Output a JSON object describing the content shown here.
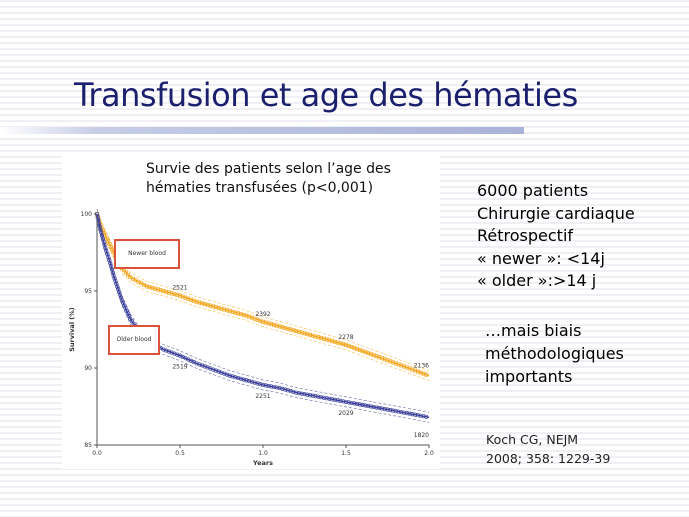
{
  "slide": {
    "title": "Transfusion et age des hématies",
    "info_lines": [
      "6000 patients",
      "Chirurgie cardiaque",
      "Rétrospectif",
      "« newer »: <14j",
      "« older »:>14 j"
    ],
    "bias_lines": [
      "…mais biais",
      "méthodologiques",
      "importants"
    ],
    "reference_lines": [
      "Koch CG, NEJM",
      "2008; 358: 1229-39"
    ],
    "caption_lines": [
      "Survie des patients selon l’age des",
      "hématies transfusées (p<0,001)"
    ]
  },
  "colors": {
    "title": "#1a1f6e",
    "newer_series": "#f2a823",
    "older_series": "#3a3f9a",
    "box_border": "#d9533a"
  },
  "chart_data": {
    "type": "line",
    "title": "Survie des patients selon l’age des hématies transfusées (p<0,001)",
    "xlabel": "Years",
    "ylabel": "Survival (%)",
    "xlim": [
      0.0,
      2.0
    ],
    "ylim": [
      85,
      100
    ],
    "x_ticks": [
      "0.0",
      "0.5",
      "1.0",
      "1.5",
      "2.0"
    ],
    "y_ticks": [
      "85",
      "90",
      "95",
      "100"
    ],
    "grid": false,
    "series": [
      {
        "name": "Newer blood",
        "color": "#f2a823",
        "x": [
          0.0,
          0.02,
          0.05,
          0.1,
          0.15,
          0.2,
          0.25,
          0.3,
          0.4,
          0.5,
          0.6,
          0.7,
          0.8,
          0.9,
          1.0,
          1.1,
          1.2,
          1.3,
          1.4,
          1.5,
          1.6,
          1.7,
          1.8,
          1.9,
          2.0
        ],
        "values": [
          100,
          99.3,
          98.6,
          97.5,
          96.5,
          95.9,
          95.6,
          95.3,
          95.0,
          94.7,
          94.3,
          94.0,
          93.7,
          93.4,
          93.0,
          92.7,
          92.4,
          92.1,
          91.8,
          91.5,
          91.1,
          90.7,
          90.3,
          89.9,
          89.5
        ],
        "at_risk": [
          {
            "x": 0.5,
            "label": "2521"
          },
          {
            "x": 1.0,
            "label": "2392"
          },
          {
            "x": 1.5,
            "label": "2278"
          },
          {
            "x": 2.0,
            "label": "2136"
          }
        ]
      },
      {
        "name": "Older blood",
        "color": "#3a3f9a",
        "x": [
          0.0,
          0.02,
          0.05,
          0.08,
          0.1,
          0.15,
          0.2,
          0.25,
          0.3,
          0.4,
          0.5,
          0.6,
          0.7,
          0.8,
          0.9,
          1.0,
          1.1,
          1.2,
          1.3,
          1.4,
          1.5,
          1.6,
          1.7,
          1.8,
          1.9,
          2.0
        ],
        "values": [
          100,
          99.0,
          97.8,
          96.8,
          96.0,
          94.4,
          93.2,
          92.4,
          91.8,
          91.2,
          90.8,
          90.3,
          89.9,
          89.5,
          89.2,
          88.9,
          88.7,
          88.4,
          88.2,
          88.0,
          87.8,
          87.6,
          87.4,
          87.2,
          87.0,
          86.8
        ],
        "at_risk": [
          {
            "x": 0.5,
            "label": "2519"
          },
          {
            "x": 1.0,
            "label": "2251"
          },
          {
            "x": 1.5,
            "label": "2029"
          },
          {
            "x": 2.0,
            "label": "1820"
          }
        ]
      }
    ]
  }
}
